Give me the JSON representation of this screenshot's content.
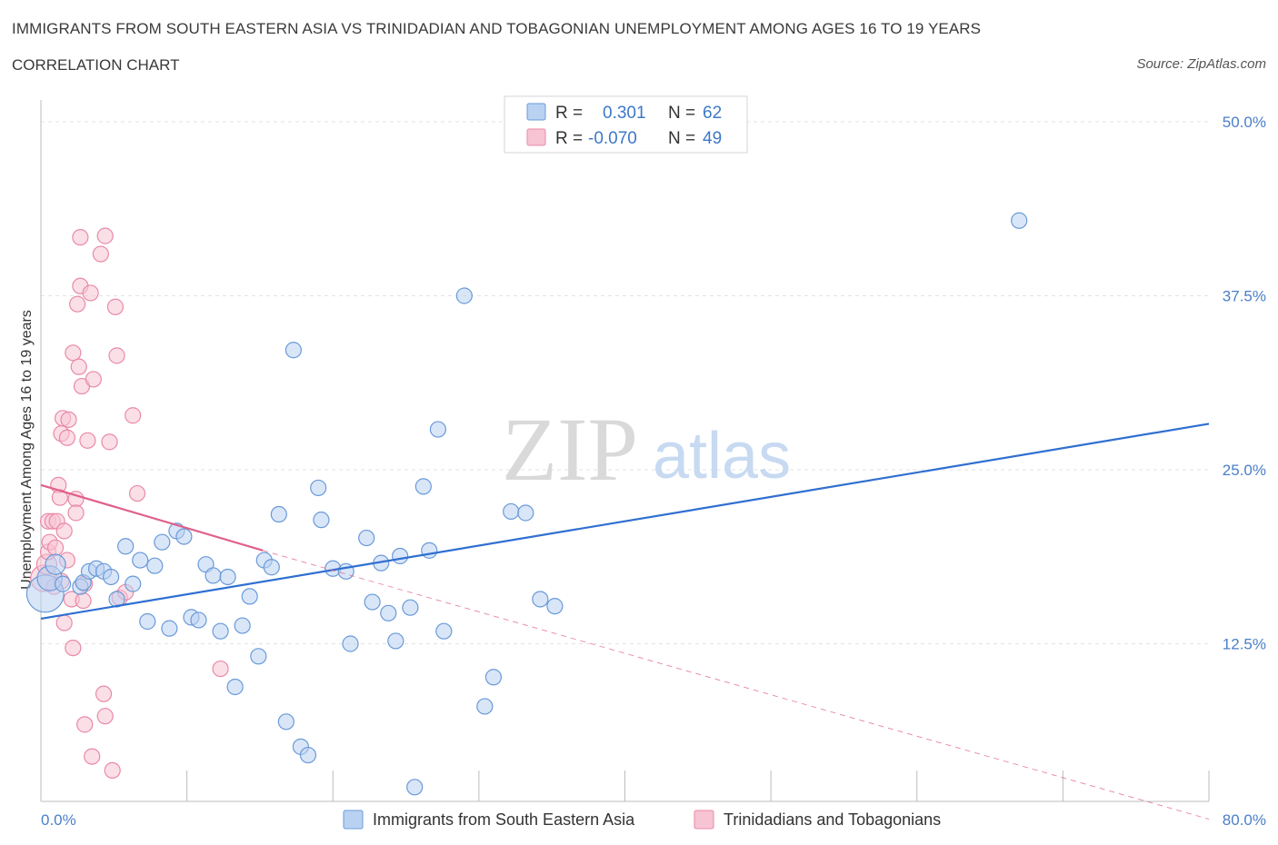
{
  "header": {
    "title": "IMMIGRANTS FROM SOUTH EASTERN ASIA VS TRINIDADIAN AND TOBAGONIAN UNEMPLOYMENT AMONG AGES 16 TO 19 YEARS",
    "subtitle": "CORRELATION CHART",
    "source": "Source: ZipAtlas.com"
  },
  "watermark": {
    "zip": "ZIP",
    "atlas": "atlas"
  },
  "legend": {
    "rows": [
      {
        "r_label": "R =",
        "r_value": "0.301",
        "n_label": "N =",
        "n_value": "62"
      },
      {
        "r_label": "R =",
        "r_value": "-0.070",
        "n_label": "N =",
        "n_value": "49"
      }
    ]
  },
  "colors": {
    "blue_fill": "#b9d2f2",
    "blue_stroke": "#6a9ad8",
    "blue_line": "#2f6fd0",
    "pink_fill": "#f7c4d3",
    "pink_stroke": "#e98aa8",
    "pink_line": "#e0608a",
    "grid": "#e3e3e3",
    "axis_text": "#4a7fc8"
  },
  "chart_data": {
    "type": "scatter",
    "title": "IMMIGRANTS FROM SOUTH EASTERN ASIA VS TRINIDADIAN AND TOBAGONIAN UNEMPLOYMENT AMONG AGES 16 TO 19 YEARS",
    "subtitle": "CORRELATION CHART",
    "xlabel": "",
    "ylabel": "Unemployment Among Ages 16 to 19 years",
    "xlim": [
      0,
      80
    ],
    "ylim": [
      0,
      50
    ],
    "x_tick_labels": [
      "0.0%",
      "80.0%"
    ],
    "y_ticks": [
      12.5,
      25,
      37.5,
      50
    ],
    "y_tick_labels": [
      "12.5%",
      "25.0%",
      "37.5%",
      "50.0%"
    ],
    "grid": true,
    "legend_position": "top-center",
    "series": [
      {
        "name": "Immigrants from South Eastern Asia",
        "r": 0.301,
        "n": 62,
        "trend": {
          "x": [
            0,
            80
          ],
          "y": [
            14.3,
            28.3
          ]
        },
        "points": [
          {
            "x": 0.3,
            "y": 16.1,
            "s": 2.4
          },
          {
            "x": 0.6,
            "y": 17.2,
            "s": 1.6
          },
          {
            "x": 1.0,
            "y": 18.2,
            "s": 1.3
          },
          {
            "x": 1.5,
            "y": 16.8,
            "s": 1.0
          },
          {
            "x": 2.7,
            "y": 16.6,
            "s": 1.0
          },
          {
            "x": 2.9,
            "y": 16.9,
            "s": 1.0
          },
          {
            "x": 3.3,
            "y": 17.7,
            "s": 1.0
          },
          {
            "x": 3.8,
            "y": 17.9,
            "s": 1.0
          },
          {
            "x": 4.3,
            "y": 17.7,
            "s": 1.0
          },
          {
            "x": 4.8,
            "y": 17.3,
            "s": 1.0
          },
          {
            "x": 5.2,
            "y": 15.7,
            "s": 1.0
          },
          {
            "x": 5.8,
            "y": 19.5,
            "s": 1.0
          },
          {
            "x": 6.3,
            "y": 16.8,
            "s": 1.0
          },
          {
            "x": 6.8,
            "y": 18.5,
            "s": 1.0
          },
          {
            "x": 7.3,
            "y": 14.1,
            "s": 1.0
          },
          {
            "x": 7.8,
            "y": 18.1,
            "s": 1.0
          },
          {
            "x": 8.3,
            "y": 19.8,
            "s": 1.0
          },
          {
            "x": 8.8,
            "y": 13.6,
            "s": 1.0
          },
          {
            "x": 9.3,
            "y": 20.6,
            "s": 1.0
          },
          {
            "x": 9.8,
            "y": 20.2,
            "s": 1.0
          },
          {
            "x": 10.3,
            "y": 14.4,
            "s": 1.0
          },
          {
            "x": 10.8,
            "y": 14.2,
            "s": 1.0
          },
          {
            "x": 11.3,
            "y": 18.2,
            "s": 1.0
          },
          {
            "x": 11.8,
            "y": 17.4,
            "s": 1.0
          },
          {
            "x": 12.3,
            "y": 13.4,
            "s": 1.0
          },
          {
            "x": 12.8,
            "y": 17.3,
            "s": 1.0
          },
          {
            "x": 13.3,
            "y": 9.4,
            "s": 1.0
          },
          {
            "x": 13.8,
            "y": 13.8,
            "s": 1.0
          },
          {
            "x": 14.3,
            "y": 15.9,
            "s": 1.0
          },
          {
            "x": 14.9,
            "y": 11.6,
            "s": 1.0
          },
          {
            "x": 15.3,
            "y": 18.5,
            "s": 1.0
          },
          {
            "x": 15.8,
            "y": 18.0,
            "s": 1.0
          },
          {
            "x": 16.3,
            "y": 21.8,
            "s": 1.0
          },
          {
            "x": 16.8,
            "y": 6.9,
            "s": 1.0
          },
          {
            "x": 17.3,
            "y": 33.6,
            "s": 1.0
          },
          {
            "x": 17.8,
            "y": 5.1,
            "s": 1.0
          },
          {
            "x": 18.3,
            "y": 4.5,
            "s": 1.0
          },
          {
            "x": 19.0,
            "y": 23.7,
            "s": 1.0
          },
          {
            "x": 19.2,
            "y": 21.4,
            "s": 1.0
          },
          {
            "x": 20.0,
            "y": 17.9,
            "s": 1.0
          },
          {
            "x": 20.9,
            "y": 17.7,
            "s": 1.0
          },
          {
            "x": 21.2,
            "y": 12.5,
            "s": 1.0
          },
          {
            "x": 22.3,
            "y": 20.1,
            "s": 1.0
          },
          {
            "x": 22.7,
            "y": 15.5,
            "s": 1.0
          },
          {
            "x": 23.3,
            "y": 18.3,
            "s": 1.0
          },
          {
            "x": 23.8,
            "y": 14.7,
            "s": 1.0
          },
          {
            "x": 24.3,
            "y": 12.7,
            "s": 1.0
          },
          {
            "x": 24.6,
            "y": 18.8,
            "s": 1.0
          },
          {
            "x": 25.3,
            "y": 15.1,
            "s": 1.0
          },
          {
            "x": 26.2,
            "y": 23.8,
            "s": 1.0
          },
          {
            "x": 26.6,
            "y": 19.2,
            "s": 1.0
          },
          {
            "x": 27.2,
            "y": 27.9,
            "s": 1.0
          },
          {
            "x": 27.6,
            "y": 13.4,
            "s": 1.0
          },
          {
            "x": 29.0,
            "y": 37.5,
            "s": 1.0
          },
          {
            "x": 30.4,
            "y": 8.0,
            "s": 1.0
          },
          {
            "x": 31.0,
            "y": 10.1,
            "s": 1.0
          },
          {
            "x": 32.2,
            "y": 22.0,
            "s": 1.0
          },
          {
            "x": 33.2,
            "y": 21.9,
            "s": 1.0
          },
          {
            "x": 34.2,
            "y": 15.7,
            "s": 1.0
          },
          {
            "x": 35.2,
            "y": 15.2,
            "s": 1.0
          },
          {
            "x": 67.0,
            "y": 42.9,
            "s": 1.0
          },
          {
            "x": 25.6,
            "y": 2.2,
            "s": 1.0
          }
        ]
      },
      {
        "name": "Trinidadians and Tobagonians",
        "r": -0.07,
        "n": 49,
        "trend": {
          "x": [
            0,
            15.2
          ],
          "y": [
            23.9,
            19.2
          ],
          "dashed_x": [
            15.2,
            80
          ],
          "dashed_y": [
            19.2,
            -0.1
          ]
        },
        "points": [
          {
            "x": 0.2,
            "y": 17.2,
            "s": 1.7
          },
          {
            "x": 0.4,
            "y": 18.2,
            "s": 1.3
          },
          {
            "x": 0.5,
            "y": 19.1,
            "s": 1.0
          },
          {
            "x": 0.5,
            "y": 21.3,
            "s": 1.0
          },
          {
            "x": 0.6,
            "y": 19.8,
            "s": 1.0
          },
          {
            "x": 0.8,
            "y": 21.3,
            "s": 1.0
          },
          {
            "x": 1.0,
            "y": 19.4,
            "s": 1.0
          },
          {
            "x": 1.1,
            "y": 21.3,
            "s": 1.0
          },
          {
            "x": 1.2,
            "y": 23.9,
            "s": 1.0
          },
          {
            "x": 1.3,
            "y": 23.0,
            "s": 1.0
          },
          {
            "x": 1.4,
            "y": 27.6,
            "s": 1.0
          },
          {
            "x": 1.5,
            "y": 28.7,
            "s": 1.0
          },
          {
            "x": 1.6,
            "y": 20.6,
            "s": 1.0
          },
          {
            "x": 1.6,
            "y": 14.0,
            "s": 1.0
          },
          {
            "x": 1.8,
            "y": 18.5,
            "s": 1.0
          },
          {
            "x": 1.8,
            "y": 27.3,
            "s": 1.0
          },
          {
            "x": 1.9,
            "y": 28.6,
            "s": 1.0
          },
          {
            "x": 2.1,
            "y": 15.7,
            "s": 1.0
          },
          {
            "x": 2.2,
            "y": 33.4,
            "s": 1.0
          },
          {
            "x": 2.2,
            "y": 12.2,
            "s": 1.0
          },
          {
            "x": 2.4,
            "y": 22.9,
            "s": 1.0
          },
          {
            "x": 2.4,
            "y": 21.9,
            "s": 1.0
          },
          {
            "x": 2.5,
            "y": 36.9,
            "s": 1.0
          },
          {
            "x": 2.6,
            "y": 32.4,
            "s": 1.0
          },
          {
            "x": 2.7,
            "y": 38.2,
            "s": 1.0
          },
          {
            "x": 2.8,
            "y": 31.0,
            "s": 1.0
          },
          {
            "x": 2.9,
            "y": 15.6,
            "s": 1.0
          },
          {
            "x": 2.7,
            "y": 41.7,
            "s": 1.0
          },
          {
            "x": 3.0,
            "y": 16.8,
            "s": 1.0
          },
          {
            "x": 3.0,
            "y": 6.7,
            "s": 1.0
          },
          {
            "x": 3.2,
            "y": 27.1,
            "s": 1.0
          },
          {
            "x": 3.4,
            "y": 37.7,
            "s": 1.0
          },
          {
            "x": 3.5,
            "y": 4.4,
            "s": 1.0
          },
          {
            "x": 3.6,
            "y": 31.5,
            "s": 1.0
          },
          {
            "x": 4.1,
            "y": 40.5,
            "s": 1.0
          },
          {
            "x": 4.3,
            "y": 8.9,
            "s": 1.0
          },
          {
            "x": 4.4,
            "y": 7.3,
            "s": 1.0
          },
          {
            "x": 4.4,
            "y": 41.8,
            "s": 1.0
          },
          {
            "x": 4.7,
            "y": 27.0,
            "s": 1.0
          },
          {
            "x": 4.9,
            "y": 3.4,
            "s": 1.0
          },
          {
            "x": 5.1,
            "y": 36.7,
            "s": 1.0
          },
          {
            "x": 5.2,
            "y": 33.2,
            "s": 1.0
          },
          {
            "x": 5.4,
            "y": 15.8,
            "s": 1.0
          },
          {
            "x": 5.8,
            "y": 16.2,
            "s": 1.0
          },
          {
            "x": 6.3,
            "y": 28.9,
            "s": 1.0
          },
          {
            "x": 6.6,
            "y": 23.3,
            "s": 1.0
          },
          {
            "x": 12.3,
            "y": 10.7,
            "s": 1.0
          },
          {
            "x": 1.4,
            "y": 17.0,
            "s": 1.0
          },
          {
            "x": 0.9,
            "y": 16.6,
            "s": 1.0
          }
        ]
      }
    ]
  }
}
